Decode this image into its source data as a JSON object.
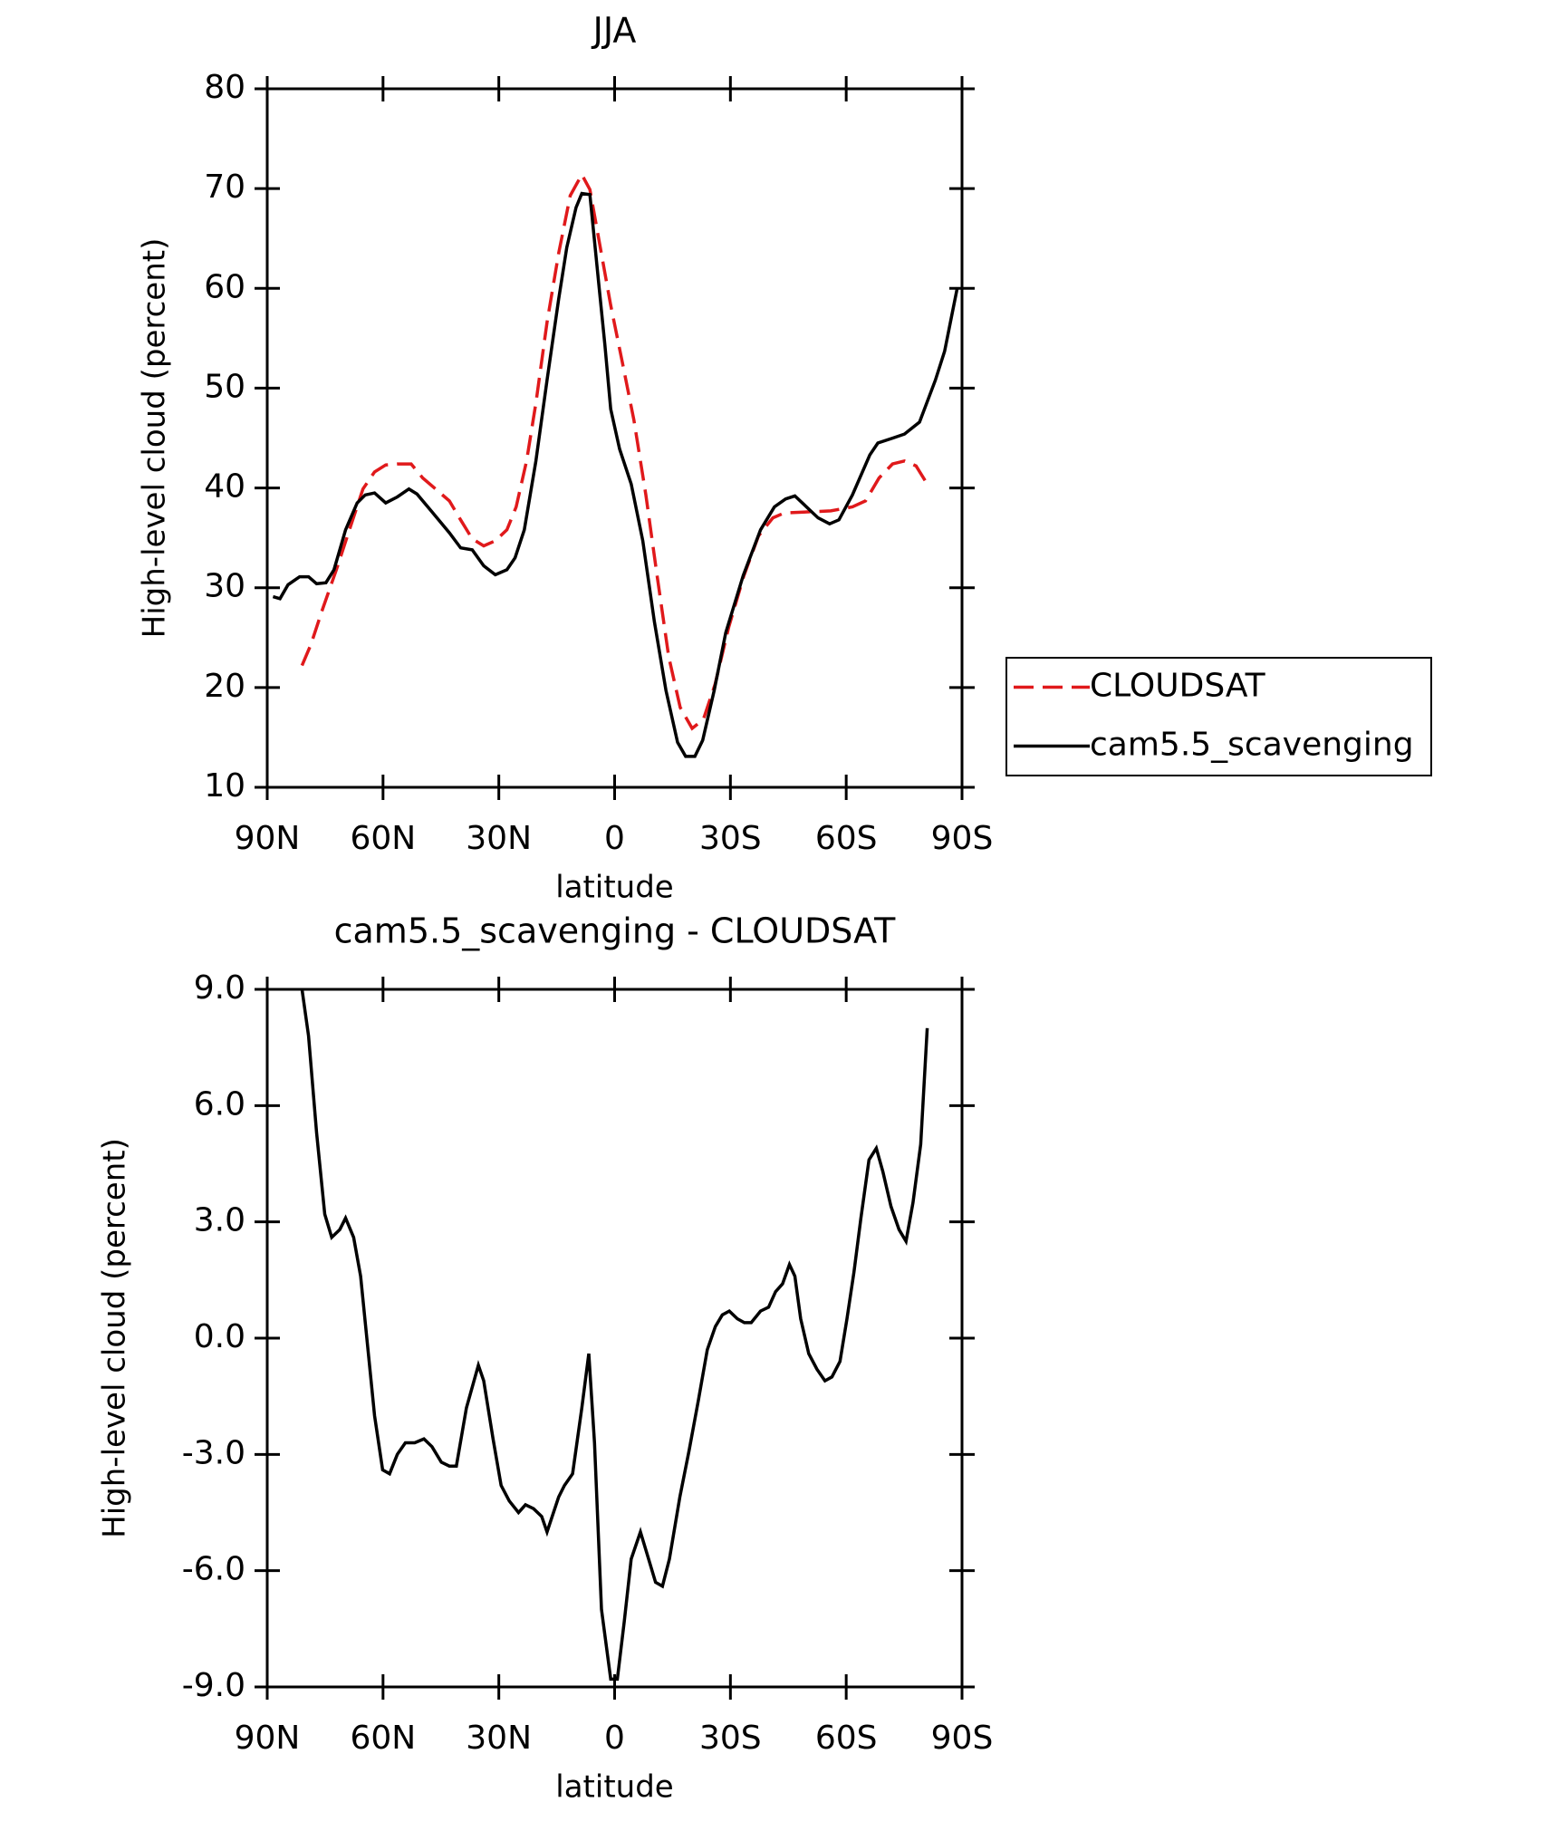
{
  "chart_data": [
    {
      "type": "line",
      "title": "JJA",
      "xlabel": "latitude",
      "ylabel": "High-level cloud (percent)",
      "xlim": [
        90,
        -90
      ],
      "ylim": [
        10,
        80
      ],
      "xticks": [
        {
          "value": 90,
          "label": "90N"
        },
        {
          "value": 60,
          "label": "60N"
        },
        {
          "value": 30,
          "label": "30N"
        },
        0,
        {
          "value": -30,
          "label": "30S"
        },
        {
          "value": -60,
          "label": "60S"
        },
        {
          "value": -90,
          "label": "90S"
        }
      ],
      "yticks": [
        10,
        20,
        30,
        40,
        50,
        60,
        70,
        80
      ],
      "legend": "outside right",
      "series": [
        {
          "name": "CLOUDSAT",
          "color": "#e0191b",
          "style": "dashed",
          "x": [
            81.0,
            78.7,
            75.7,
            72.1,
            68.2,
            65.2,
            62.2,
            59.3,
            56.3,
            52.7,
            49.7,
            46.4,
            42.8,
            39.9,
            36.9,
            33.9,
            30.9,
            27.9,
            25.5,
            22.8,
            20.4,
            17.5,
            14.5,
            11.5,
            8.5,
            6.4,
            4.0,
            1.0,
            -2.0,
            -5.0,
            -8.1,
            -11.0,
            -14.0,
            -17.0,
            -20.1,
            -23.0,
            -26.0,
            -29.6,
            -33.5,
            -37.3,
            -41.0,
            -44.0,
            -50.0,
            -56.0,
            -61.6,
            -65.0,
            -68.5,
            -72.0,
            -75.1,
            -78.1,
            -81.0
          ],
          "values": [
            22.2,
            24.3,
            27.8,
            31.8,
            36.4,
            39.9,
            41.6,
            42.3,
            42.4,
            42.4,
            41.0,
            39.9,
            38.7,
            36.8,
            34.9,
            34.2,
            34.7,
            35.8,
            38.1,
            42.7,
            48.5,
            56.6,
            63.5,
            69.3,
            71.4,
            69.9,
            64.7,
            58.3,
            52.6,
            46.8,
            39.3,
            31.2,
            23.1,
            18.0,
            15.9,
            16.8,
            20.3,
            26.1,
            31.2,
            35.2,
            37.0,
            37.5,
            37.6,
            37.7,
            38.1,
            38.7,
            41.0,
            42.4,
            42.7,
            42.2,
            40.4
          ]
        },
        {
          "name": "cam5.5_scavenging",
          "color": "#000000",
          "style": "solid",
          "x": [
            88.5,
            86.7,
            84.6,
            81.6,
            79.3,
            77.2,
            74.8,
            72.7,
            69.7,
            66.7,
            64.6,
            62.2,
            59.3,
            56.3,
            53.3,
            51.2,
            47.3,
            42.8,
            39.9,
            36.9,
            33.9,
            30.9,
            27.9,
            25.8,
            23.4,
            20.4,
            17.5,
            14.5,
            12.4,
            10.0,
            8.5,
            6.4,
            4.0,
            2.5,
            1.0,
            -1.3,
            -4.3,
            -7.3,
            -10.3,
            -13.3,
            -16.3,
            -18.4,
            -20.8,
            -22.8,
            -25.8,
            -28.8,
            -33.3,
            -37.8,
            -41.4,
            -44.3,
            -46.7,
            -49.7,
            -52.7,
            -55.7,
            -58.1,
            -61.6,
            -66.1,
            -68.2,
            -72.1,
            -75.1,
            -79.0,
            -83.1,
            -85.5,
            -87.3,
            -88.8
          ],
          "values": [
            29.1,
            28.9,
            30.3,
            31.1,
            31.1,
            30.4,
            30.5,
            31.8,
            35.8,
            38.5,
            39.3,
            39.5,
            38.5,
            39.1,
            39.9,
            39.4,
            37.6,
            35.5,
            34.0,
            33.8,
            32.2,
            31.3,
            31.8,
            33.0,
            35.8,
            42.7,
            50.8,
            58.9,
            64.1,
            68.1,
            69.5,
            69.4,
            60.0,
            54.3,
            47.9,
            43.9,
            40.4,
            34.7,
            26.6,
            19.7,
            14.5,
            13.1,
            13.1,
            14.7,
            19.7,
            25.5,
            31.2,
            35.8,
            38.1,
            38.9,
            39.2,
            38.1,
            37.0,
            36.4,
            36.8,
            39.3,
            43.3,
            44.5,
            45.0,
            45.4,
            46.6,
            50.8,
            53.7,
            57.2,
            60.1
          ]
        }
      ]
    },
    {
      "type": "line",
      "title": "cam5.5_scavenging - CLOUDSAT",
      "xlabel": "latitude",
      "ylabel": "High-level cloud (percent)",
      "xlim": [
        90,
        -90
      ],
      "ylim": [
        -9,
        9
      ],
      "xticks": [
        {
          "value": 90,
          "label": "90N"
        },
        {
          "value": 60,
          "label": "60N"
        },
        {
          "value": 30,
          "label": "30N"
        },
        0,
        {
          "value": -30,
          "label": "30S"
        },
        {
          "value": -60,
          "label": "60S"
        },
        {
          "value": -90,
          "label": "90S"
        }
      ],
      "yticks": [
        {
          "value": -9,
          "label": "-9.0"
        },
        {
          "value": -6,
          "label": "-6.0"
        },
        {
          "value": -3,
          "label": "-3.0"
        },
        {
          "value": 0,
          "label": "0.0"
        },
        {
          "value": 3,
          "label": "3.0"
        },
        {
          "value": 6,
          "label": "6.0"
        },
        {
          "value": 9,
          "label": "9.0"
        }
      ],
      "series": [
        {
          "color": "#000000",
          "style": "solid",
          "x": [
            81.0,
            79.3,
            77.2,
            75.1,
            73.3,
            71.2,
            69.7,
            67.6,
            65.8,
            63.7,
            62.2,
            60.1,
            58.3,
            56.3,
            54.2,
            51.8,
            49.4,
            47.3,
            44.9,
            42.8,
            41.0,
            38.4,
            35.3,
            33.9,
            31.5,
            29.4,
            27.3,
            24.9,
            23.1,
            21.0,
            18.9,
            17.5,
            14.5,
            13.0,
            10.9,
            8.5,
            6.7,
            5.2,
            3.4,
            1.0,
            -0.7,
            -2.5,
            -4.3,
            -6.7,
            -8.8,
            -10.6,
            -12.4,
            -14.2,
            -16.9,
            -19.3,
            -21.7,
            -24.0,
            -26.1,
            -27.9,
            -29.7,
            -31.8,
            -33.6,
            -35.4,
            -37.8,
            -39.9,
            -41.7,
            -43.5,
            -45.3,
            -46.7,
            -48.2,
            -50.3,
            -52.4,
            -54.5,
            -56.3,
            -58.4,
            -60.2,
            -62.0,
            -63.8,
            -65.9,
            -67.8,
            -69.5,
            -71.6,
            -73.7,
            -75.5,
            -77.3,
            -79.3,
            -81.0
          ],
          "values": [
            9.0,
            7.8,
            5.3,
            3.2,
            2.6,
            2.8,
            3.1,
            2.6,
            1.6,
            -0.5,
            -2.0,
            -3.4,
            -3.5,
            -3.0,
            -2.7,
            -2.7,
            -2.6,
            -2.8,
            -3.2,
            -3.3,
            -3.3,
            -1.8,
            -0.7,
            -1.1,
            -2.6,
            -3.8,
            -4.2,
            -4.5,
            -4.3,
            -4.4,
            -4.6,
            -5.0,
            -4.1,
            -3.8,
            -3.5,
            -1.8,
            -0.4,
            -2.7,
            -7.0,
            -8.8,
            -8.8,
            -7.3,
            -5.7,
            -5.0,
            -5.7,
            -6.3,
            -6.4,
            -5.7,
            -4.1,
            -2.9,
            -1.6,
            -0.3,
            0.3,
            0.6,
            0.7,
            0.5,
            0.4,
            0.4,
            0.7,
            0.8,
            1.2,
            1.4,
            1.9,
            1.6,
            0.5,
            -0.4,
            -0.8,
            -1.1,
            -1.0,
            -0.6,
            0.5,
            1.7,
            3.1,
            4.6,
            4.9,
            4.3,
            3.4,
            2.8,
            2.5,
            3.5,
            5.0,
            8.0
          ]
        }
      ]
    }
  ]
}
